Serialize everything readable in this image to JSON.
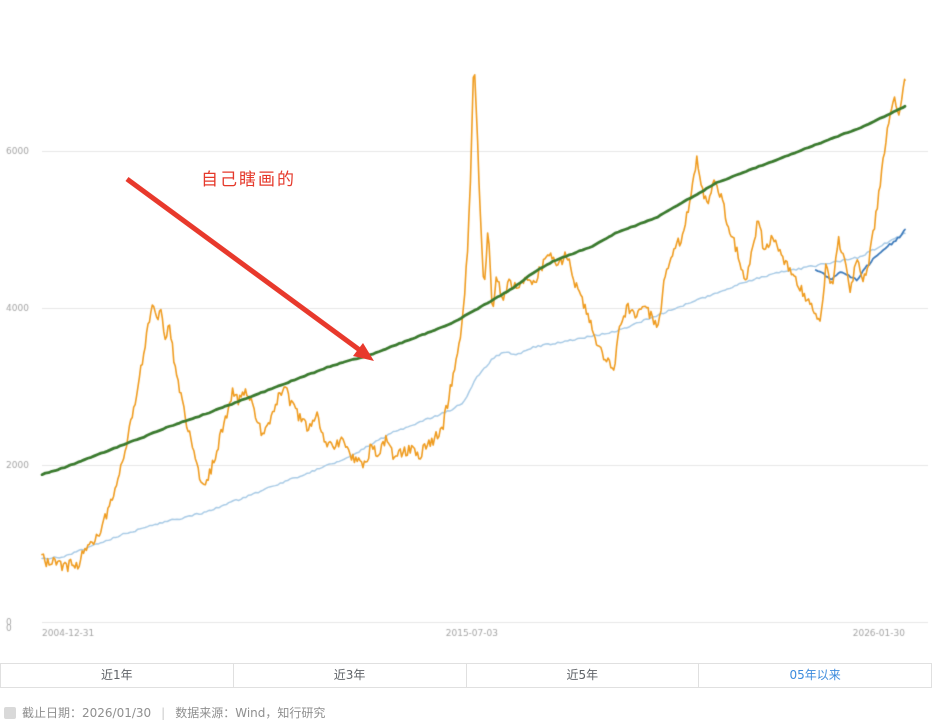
{
  "annotation": {
    "text": "自己瞎画的"
  },
  "chart_data": {
    "type": "line",
    "title": "",
    "xlabel": "",
    "ylabel": "",
    "grid": true,
    "legend": "none",
    "x_range": [
      0,
      21.08
    ],
    "ylim": [
      0,
      7800
    ],
    "y_ticks": [
      0,
      2000,
      4000,
      6000
    ],
    "y_axis_extra_zero": "0",
    "x_axis_labels": [
      {
        "label": "2004-12-31",
        "t": 0,
        "align": "left"
      },
      {
        "label": "2015-07-03",
        "t": 10.5,
        "align": "center"
      },
      {
        "label": "2026-01-30",
        "t": 21.08,
        "align": "right"
      }
    ],
    "series": [
      {
        "name": "light-blue-line",
        "color": "#a9cbe6",
        "width": 1.5,
        "jitter": 12,
        "step": 0.06,
        "seed": 11,
        "t": [
          0,
          0.5,
          1,
          1.5,
          2,
          2.5,
          3,
          3.5,
          4,
          4.5,
          5,
          5.5,
          6,
          6.5,
          7,
          7.5,
          8,
          8.5,
          9,
          9.5,
          10,
          10.3,
          10.6,
          11,
          11.3,
          11.6,
          12,
          12.5,
          13,
          13.5,
          14,
          14.5,
          15,
          15.5,
          16,
          16.5,
          17,
          17.5,
          18,
          18.5,
          19,
          19.5,
          20,
          20.5,
          21.08
        ],
        "v": [
          800,
          830,
          920,
          1020,
          1120,
          1200,
          1280,
          1330,
          1400,
          1500,
          1600,
          1700,
          1800,
          1900,
          2000,
          2100,
          2250,
          2400,
          2500,
          2600,
          2700,
          2800,
          3100,
          3350,
          3450,
          3400,
          3500,
          3550,
          3600,
          3650,
          3700,
          3800,
          3900,
          4000,
          4100,
          4200,
          4300,
          4380,
          4450,
          4500,
          4550,
          4600,
          4650,
          4800,
          4950
        ]
      },
      {
        "name": "dark-blue-recent-line",
        "color": "#3f7cbc",
        "width": 1.8,
        "jitter": 18,
        "step": 0.05,
        "seed": 5,
        "t": [
          18.9,
          19.1,
          19.3,
          19.5,
          19.7,
          19.9,
          20.1,
          20.3,
          20.5,
          20.7,
          20.9,
          21.08
        ],
        "v": [
          4480,
          4420,
          4360,
          4470,
          4420,
          4350,
          4500,
          4620,
          4700,
          4800,
          4880,
          5000
        ]
      },
      {
        "name": "orange-line",
        "color": "#ef9c20",
        "width": 1.6,
        "jitter": 70,
        "step": 0.035,
        "seed": 7,
        "t": [
          0,
          0.12,
          0.25,
          0.4,
          0.55,
          0.7,
          0.85,
          1.0,
          1.2,
          1.4,
          1.6,
          1.8,
          2.0,
          2.2,
          2.4,
          2.55,
          2.7,
          2.8,
          2.9,
          3.0,
          3.1,
          3.25,
          3.4,
          3.6,
          3.8,
          3.95,
          4.1,
          4.3,
          4.5,
          4.65,
          4.8,
          5.0,
          5.2,
          5.4,
          5.6,
          5.8,
          5.95,
          6.1,
          6.3,
          6.5,
          6.7,
          6.9,
          7.1,
          7.3,
          7.5,
          7.7,
          7.9,
          8.05,
          8.2,
          8.4,
          8.6,
          8.8,
          9.0,
          9.2,
          9.4,
          9.6,
          9.8,
          9.95,
          10.1,
          10.25,
          10.38,
          10.48,
          10.55,
          10.63,
          10.72,
          10.8,
          10.9,
          11.0,
          11.1,
          11.25,
          11.4,
          11.6,
          11.8,
          12.0,
          12.2,
          12.4,
          12.6,
          12.8,
          13.0,
          13.2,
          13.4,
          13.6,
          13.8,
          13.95,
          14.1,
          14.3,
          14.5,
          14.7,
          14.9,
          15.05,
          15.2,
          15.4,
          15.6,
          15.8,
          16.0,
          16.1,
          16.25,
          16.4,
          16.6,
          16.8,
          17.0,
          17.2,
          17.35,
          17.5,
          17.65,
          17.8,
          18.0,
          18.2,
          18.4,
          18.6,
          18.8,
          19.0,
          19.15,
          19.3,
          19.45,
          19.6,
          19.75,
          19.9,
          20.05,
          20.2,
          20.35,
          20.5,
          20.65,
          20.8,
          20.9,
          21.08
        ],
        "v": [
          820,
          760,
          790,
          720,
          690,
          730,
          710,
          860,
          1000,
          1160,
          1380,
          1720,
          2150,
          2620,
          3150,
          3650,
          4100,
          3820,
          4020,
          3580,
          3830,
          3250,
          2880,
          2380,
          1960,
          1720,
          1900,
          2250,
          2620,
          2950,
          2800,
          2920,
          2680,
          2360,
          2620,
          2900,
          2960,
          2760,
          2600,
          2440,
          2660,
          2340,
          2200,
          2320,
          2140,
          2060,
          1990,
          2260,
          2140,
          2310,
          2090,
          2160,
          2210,
          2110,
          2260,
          2330,
          2520,
          2900,
          3280,
          3750,
          4600,
          5800,
          7300,
          6200,
          5100,
          4250,
          5050,
          3950,
          4420,
          4080,
          4350,
          4240,
          4420,
          4300,
          4520,
          4650,
          4540,
          4700,
          4340,
          4080,
          3780,
          3500,
          3330,
          3180,
          3720,
          4020,
          3900,
          4060,
          3880,
          3730,
          4320,
          4680,
          4880,
          5320,
          5900,
          5600,
          5300,
          5620,
          5380,
          5000,
          4680,
          4280,
          4820,
          5120,
          4680,
          4900,
          4760,
          4540,
          4340,
          4180,
          4020,
          3800,
          4520,
          4280,
          4920,
          4580,
          4220,
          4620,
          4300,
          4600,
          5100,
          5700,
          6300,
          6700,
          6450,
          6900
        ]
      },
      {
        "name": "green-line",
        "color": "#3a7a2e",
        "width": 2.8,
        "jitter": 5,
        "step": 0.08,
        "seed": 3,
        "t": [
          0,
          0.5,
          1,
          1.5,
          2,
          2.5,
          3,
          3.5,
          4,
          4.5,
          5,
          5.5,
          6,
          6.5,
          7,
          7.5,
          8,
          8.5,
          9,
          9.5,
          10,
          10.5,
          11,
          11.5,
          12,
          12.5,
          13,
          13.5,
          14,
          14.5,
          15,
          15.5,
          16,
          16.5,
          17,
          17.5,
          18,
          18.5,
          19,
          19.5,
          20,
          20.5,
          21.08
        ],
        "v": [
          1880,
          1960,
          2060,
          2160,
          2260,
          2360,
          2470,
          2560,
          2650,
          2750,
          2850,
          2950,
          3050,
          3150,
          3250,
          3330,
          3400,
          3500,
          3600,
          3700,
          3800,
          3950,
          4100,
          4250,
          4450,
          4600,
          4700,
          4800,
          4950,
          5050,
          5150,
          5300,
          5450,
          5600,
          5700,
          5800,
          5900,
          6000,
          6100,
          6200,
          6300,
          6420,
          6570
        ]
      }
    ]
  },
  "tabs": {
    "active_index": 3,
    "items": [
      {
        "label": "近1年"
      },
      {
        "label": "近3年"
      },
      {
        "label": "近5年"
      },
      {
        "label": "05年以来"
      }
    ]
  },
  "footer": {
    "date_label": "截止日期：2026/01/30",
    "divider": "|",
    "source_label": "数据来源：Wind，知行研究"
  }
}
